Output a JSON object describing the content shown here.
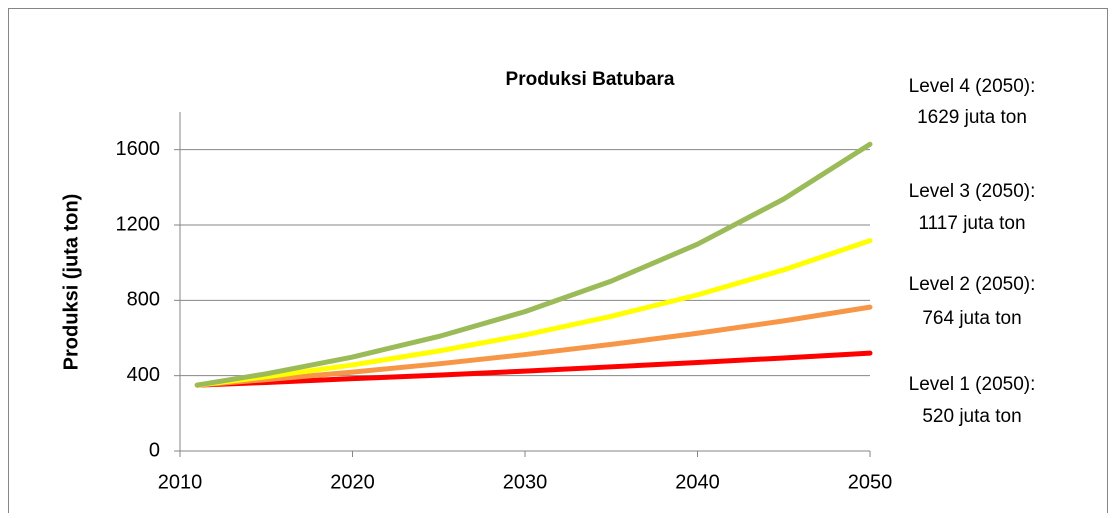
{
  "chart_data": {
    "type": "line",
    "title": "Produksi Batubara",
    "y_label": "Produksi (juta ton)",
    "x": [
      2011,
      2015,
      2020,
      2025,
      2030,
      2035,
      2040,
      2045,
      2050
    ],
    "series": [
      {
        "color": "#ff0000",
        "values": [
          350,
          364,
          384,
          403,
          424,
          447,
          470,
          494,
          520
        ]
      },
      {
        "color": "#f79646",
        "values": [
          350,
          379,
          419,
          463,
          512,
          566,
          625,
          691,
          764
        ]
      },
      {
        "color": "#ffff00",
        "values": [
          350,
          394,
          457,
          531,
          616,
          715,
          829,
          962,
          1117
        ]
      },
      {
        "color": "#9bbb59",
        "values": [
          350,
          410,
          499,
          608,
          740,
          902,
          1098,
          1338,
          1629
        ]
      }
    ],
    "annotations": [
      [
        "Level 1 (2050):",
        "520 juta ton"
      ],
      [
        "Level 2 (2050):",
        "764 juta ton"
      ],
      [
        "Level 3 (2050):",
        "1117 juta ton"
      ],
      [
        "Level 4 (2050):",
        "1629 juta ton"
      ]
    ],
    "xlim": [
      2010,
      2050
    ],
    "xticks": [
      2010,
      2020,
      2030,
      2040,
      2050
    ],
    "ylim": [
      0,
      1800
    ],
    "yticks": [
      0,
      400,
      800,
      1200,
      1600
    ],
    "grid": true
  }
}
